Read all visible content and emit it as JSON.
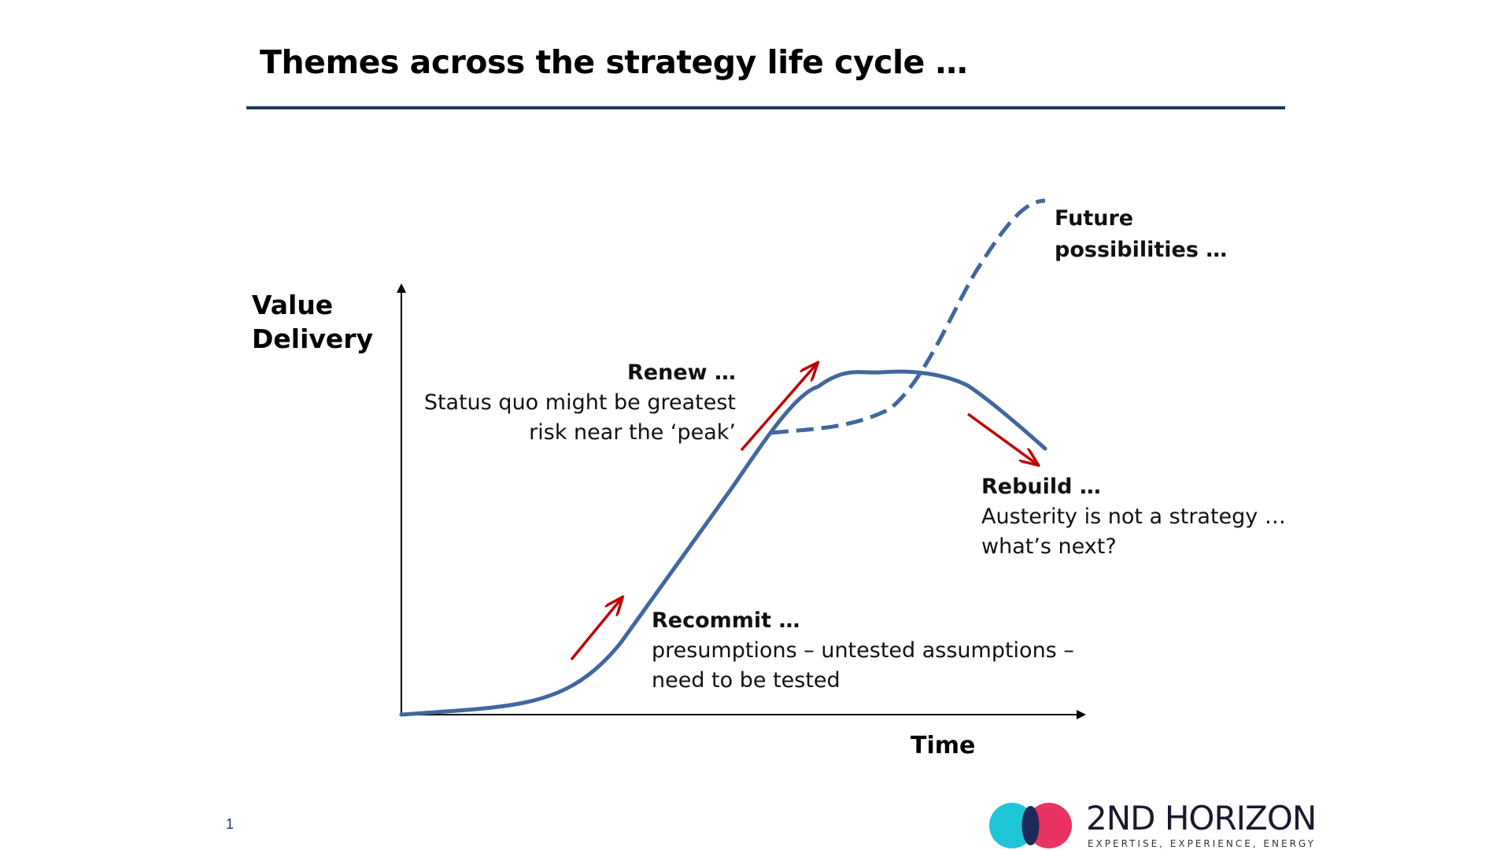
{
  "slide": {
    "title": "Themes across the strategy life cycle …",
    "page_number": "1"
  },
  "axes": {
    "y_label_line1": "Value",
    "y_label_line2": "Delivery",
    "x_label": "Time"
  },
  "notes": {
    "future": {
      "line1": "Future",
      "line2": "possibilities …"
    },
    "renew": {
      "head": "Renew …",
      "line1": "Status quo might be greatest",
      "line2": "risk near the ‘peak’"
    },
    "rebuild": {
      "head": "Rebuild …",
      "line1": "Austerity is not a strategy …",
      "line2": "what’s next?"
    },
    "recommit": {
      "head": "Recommit …",
      "line1": "presumptions – untested assumptions –",
      "line2": "need to be tested"
    }
  },
  "logo": {
    "name": "2ND HORIZON",
    "tagline": "EXPERTISE, EXPERIENCE, ENERGY"
  },
  "colors": {
    "curve": "#41679e",
    "arrow": "#c00000",
    "title_rule": "#1f3864",
    "logo_cyan": "#1ec5d6",
    "logo_pink": "#e8285a",
    "logo_navy": "#1e2a5a"
  }
}
